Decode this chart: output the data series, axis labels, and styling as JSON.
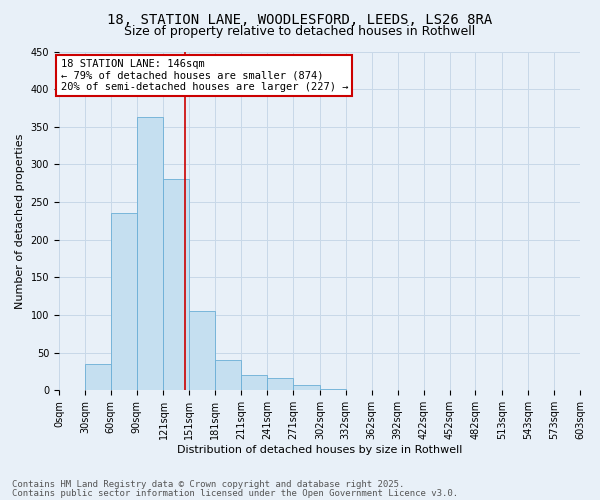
{
  "title1": "18, STATION LANE, WOODLESFORD, LEEDS, LS26 8RA",
  "title2": "Size of property relative to detached houses in Rothwell",
  "xlabel": "Distribution of detached houses by size in Rothwell",
  "ylabel": "Number of detached properties",
  "footnote1": "Contains HM Land Registry data © Crown copyright and database right 2025.",
  "footnote2": "Contains public sector information licensed under the Open Government Licence v3.0.",
  "bar_left_edges": [
    0,
    30,
    60,
    90,
    121,
    151,
    181,
    211,
    241,
    271,
    302,
    332,
    362,
    392,
    422,
    452,
    482,
    513,
    543,
    573
  ],
  "bar_widths": [
    30,
    30,
    30,
    31,
    30,
    30,
    30,
    30,
    30,
    31,
    30,
    30,
    30,
    30,
    30,
    30,
    31,
    30,
    30,
    30
  ],
  "bar_heights": [
    0,
    35,
    236,
    363,
    281,
    105,
    40,
    21,
    16,
    7,
    2,
    1,
    0,
    0,
    0,
    0,
    0,
    1,
    0,
    0
  ],
  "tick_labels": [
    "0sqm",
    "30sqm",
    "60sqm",
    "90sqm",
    "121sqm",
    "151sqm",
    "181sqm",
    "211sqm",
    "241sqm",
    "271sqm",
    "302sqm",
    "332sqm",
    "362sqm",
    "392sqm",
    "422sqm",
    "452sqm",
    "482sqm",
    "513sqm",
    "543sqm",
    "573sqm",
    "603sqm"
  ],
  "bar_color": "#c5dff0",
  "bar_edge_color": "#6aaed6",
  "vline_x": 146,
  "vline_color": "#cc0000",
  "annotation_text": "18 STATION LANE: 146sqm\n← 79% of detached houses are smaller (874)\n20% of semi-detached houses are larger (227) →",
  "annotation_box_color": "#cc0000",
  "ylim": [
    0,
    450
  ],
  "yticks": [
    0,
    50,
    100,
    150,
    200,
    250,
    300,
    350,
    400,
    450
  ],
  "grid_color": "#c8d8e8",
  "bg_color": "#e8f0f8",
  "title_fontsize": 10,
  "subtitle_fontsize": 9,
  "axis_label_fontsize": 8,
  "tick_fontsize": 7,
  "annotation_fontsize": 7.5,
  "footnote_fontsize": 6.5
}
